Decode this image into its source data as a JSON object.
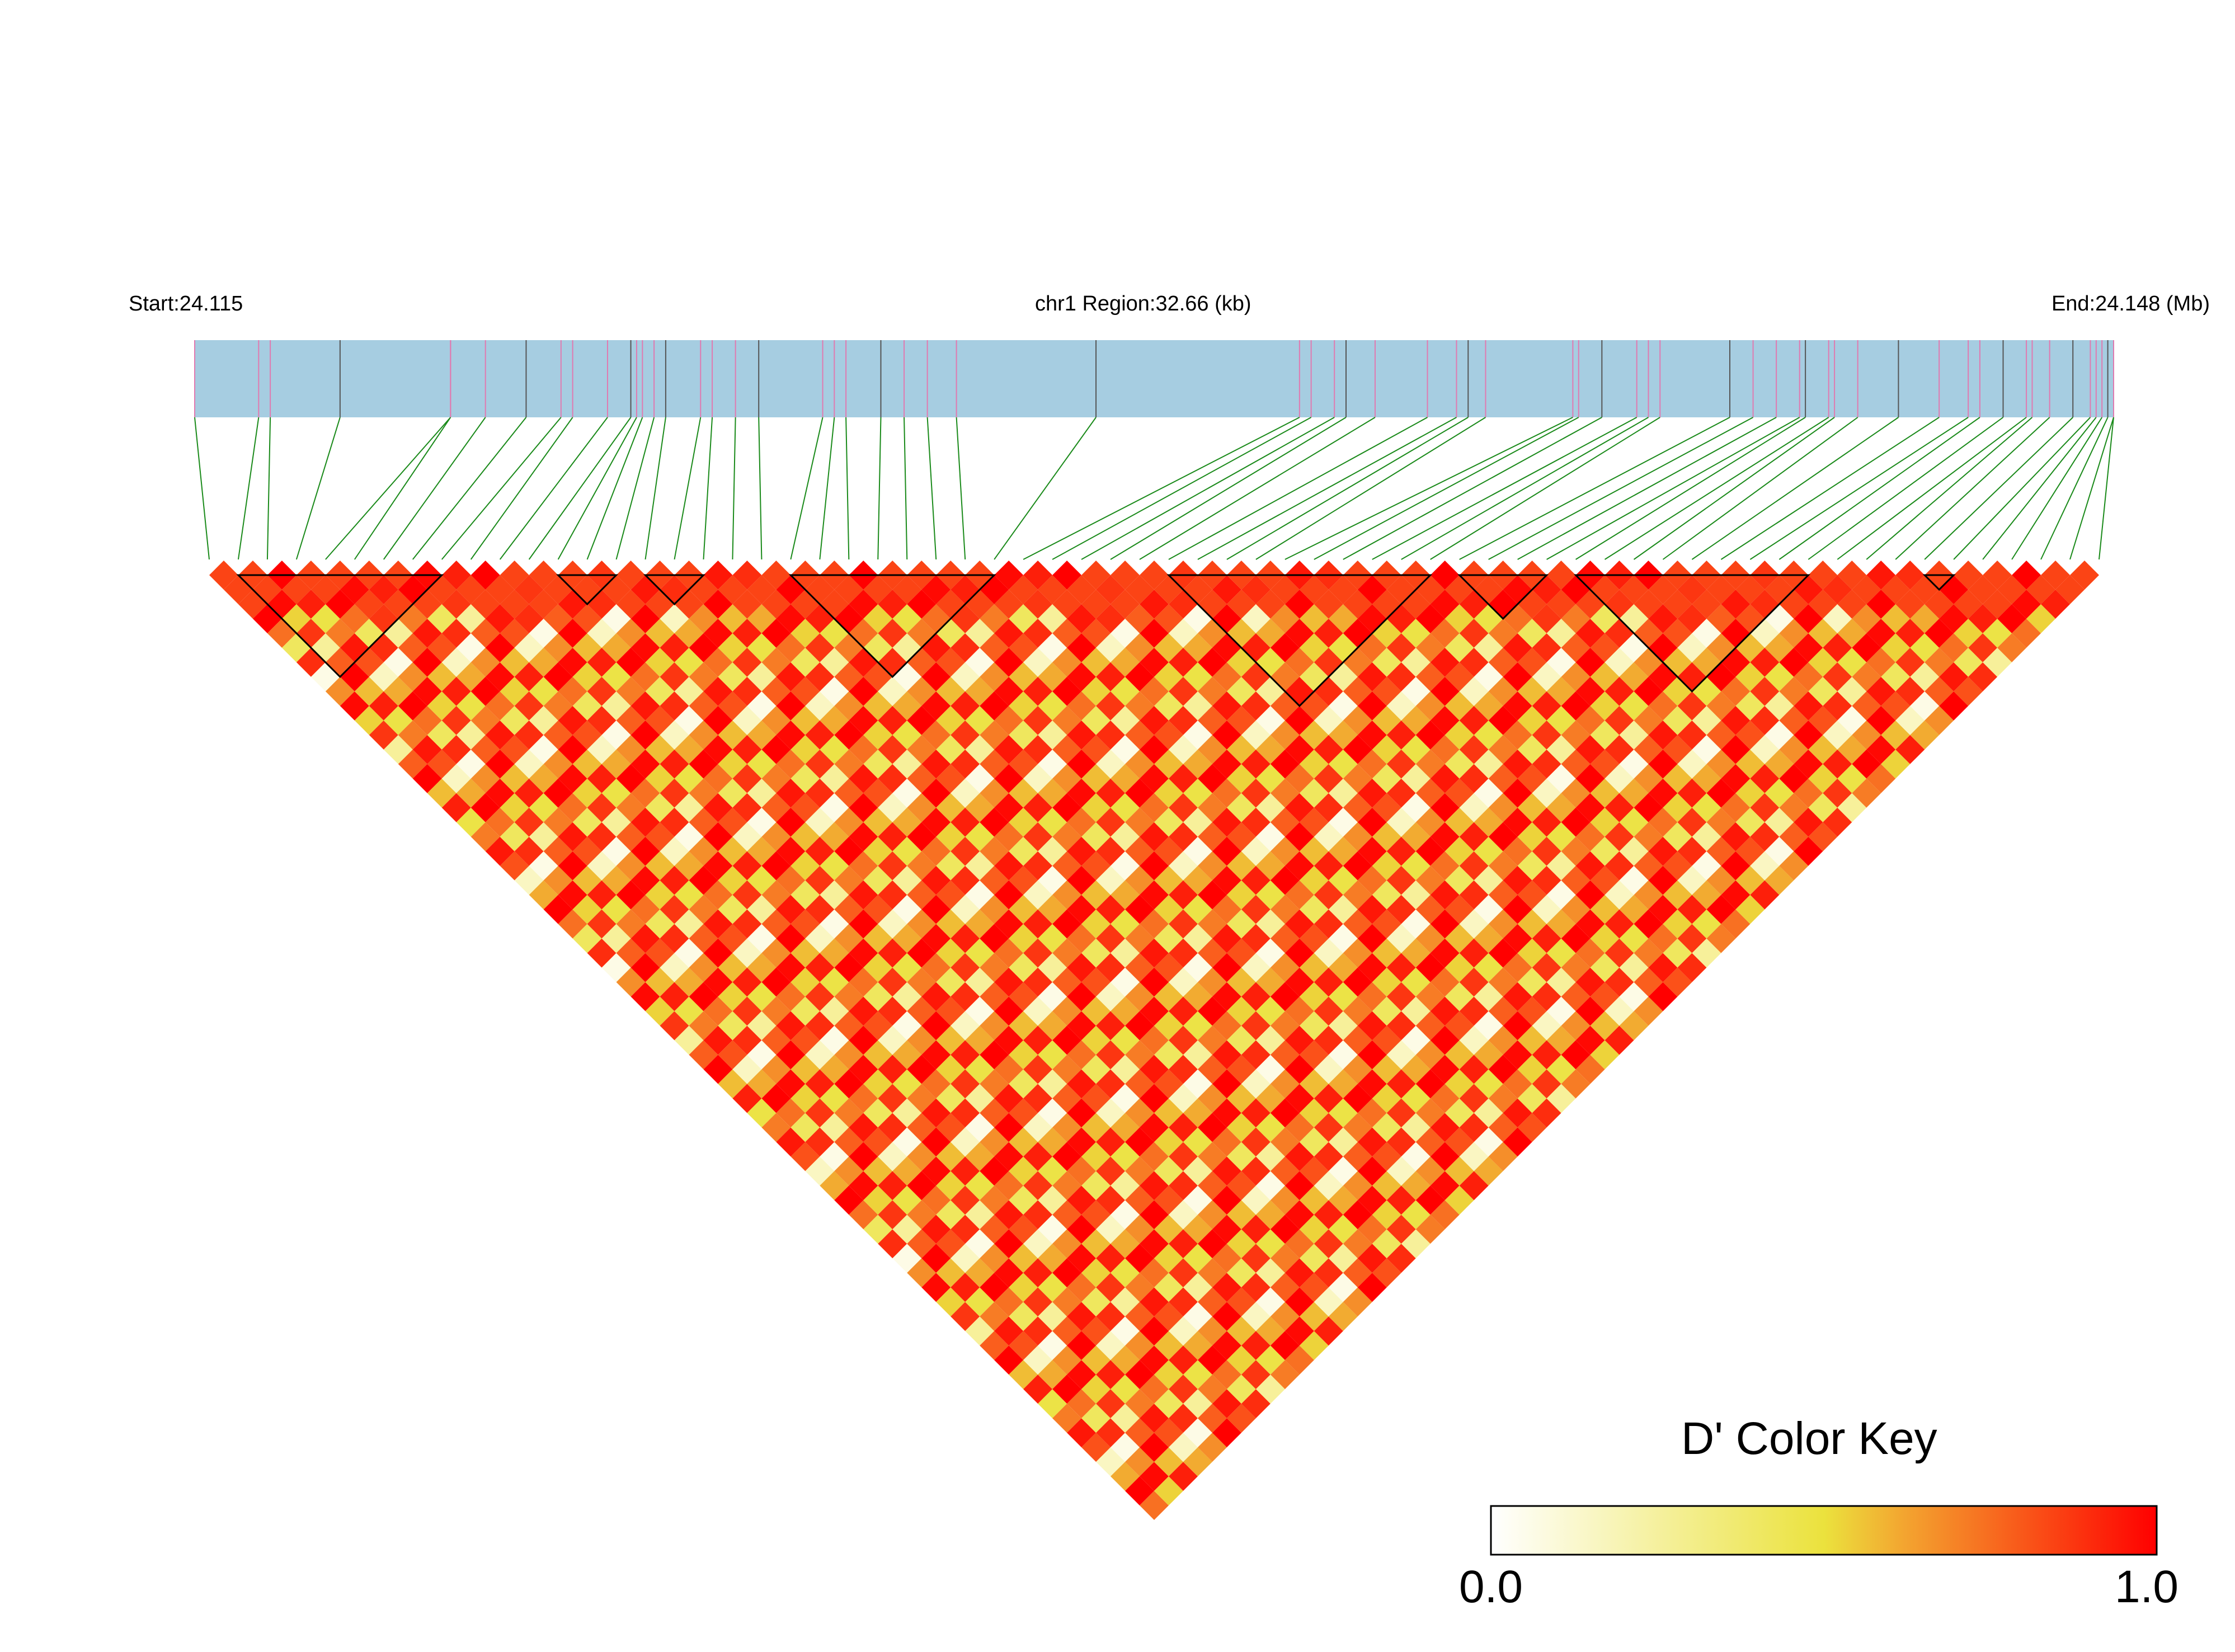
{
  "header": {
    "start_label": "Start:24.115",
    "region_label": "chr1 Region:32.66 (kb)",
    "end_label": "End:24.148 (Mb)"
  },
  "colors": {
    "track_fill": "#a6cde1",
    "snp_tick_pink": "#e07ab0",
    "snp_tick_dark": "#555555",
    "connector_green": "#1a8a1a",
    "ld_high": "#ff0000",
    "ld_low": "#ffffff",
    "block_outline": "#000000"
  },
  "chart_data": {
    "type": "heatmap",
    "subtype": "LD triangle plot",
    "metric": "D'",
    "region": {
      "chromosome": "chr1",
      "start_mb": 24.115,
      "end_mb": 24.148,
      "length_kb": 32.66
    },
    "n_snps": 66,
    "snp_positions_mb": [
      24.115,
      24.1161,
      24.1163,
      24.1175,
      24.1194,
      24.1194,
      24.12,
      24.1207,
      24.1213,
      24.1215,
      24.1221,
      24.1225,
      24.1226,
      24.1227,
      24.1229,
      24.1231,
      24.1237,
      24.1239,
      24.1243,
      24.1247,
      24.1258,
      24.126,
      24.1262,
      24.1268,
      24.1272,
      24.1276,
      24.1281,
      24.1305,
      24.134,
      24.1342,
      24.1346,
      24.1348,
      24.1353,
      24.1362,
      24.1367,
      24.1369,
      24.1372,
      24.1387,
      24.1388,
      24.1392,
      24.1398,
      24.14,
      24.1402,
      24.1414,
      24.1418,
      24.1422,
      24.1426,
      24.1427,
      24.1431,
      24.1432,
      24.1436,
      24.1443,
      24.145,
      24.1455,
      24.1457,
      24.1461,
      24.1465,
      24.1466,
      24.1469,
      24.1473,
      24.1476,
      24.1477,
      24.1478,
      24.1479,
      24.148,
      24.148
    ],
    "haplotype_blocks": [
      [
        1,
        8
      ],
      [
        12,
        14
      ],
      [
        15,
        17
      ],
      [
        20,
        27
      ],
      [
        33,
        42
      ],
      [
        43,
        46
      ],
      [
        47,
        55
      ],
      [
        59,
        60
      ]
    ],
    "pattern": {
      "sequence": [
        0.95,
        0.82,
        0.12,
        0.58,
        1.0,
        0.74,
        0.33,
        0.9,
        0.05,
        0.66,
        0.98,
        0.45,
        0.88,
        0.2,
        0.79,
        1.0,
        0.52,
        0.93,
        0.38,
        0.71
      ],
      "lag_modulus": 20,
      "snp_multiplier": 7
    },
    "colorbar": {
      "title": "D' Color Key",
      "min": 0.0,
      "max": 1.0,
      "min_label": "0.0",
      "max_label": "1.0",
      "stops": [
        "#ffffff",
        "#f7f09a",
        "#ebe23d",
        "#f3a530",
        "#fa5a1c",
        "#ff0000"
      ]
    }
  }
}
